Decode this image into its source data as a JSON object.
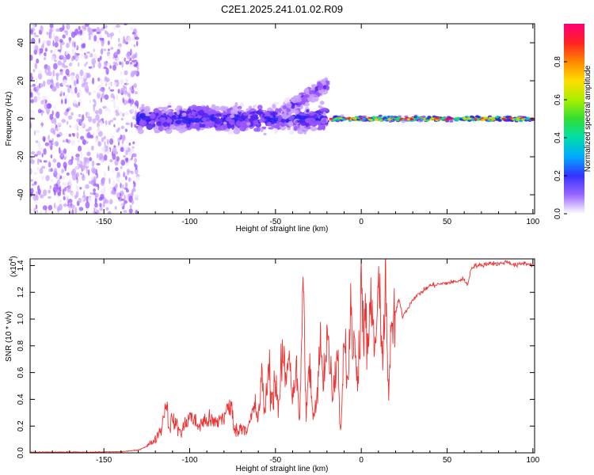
{
  "title": "C2E1.2025.241.01.02.R09",
  "chart_data": [
    {
      "type": "heatmap",
      "title": "C2E1.2025.241.01.02.R09",
      "xlabel": "Height of straight line (km)",
      "ylabel": "Frequency (Hz)",
      "xlim": [
        -193,
        101
      ],
      "ylim": [
        -50,
        50
      ],
      "xticks": [
        -150,
        -100,
        -50,
        0,
        50,
        100
      ],
      "xtick_labels": [
        "-150",
        "-100",
        "-50",
        "0",
        "50",
        "100"
      ],
      "yticks": [
        -40,
        -20,
        0,
        20,
        40
      ],
      "ytick_labels": [
        "-40",
        "-20",
        "0",
        "20",
        "40"
      ],
      "colorbar": {
        "label": "Normalized spectral amplitude",
        "range": [
          0,
          1
        ],
        "ticks": [
          0.0,
          0.2,
          0.4,
          0.6,
          0.8
        ],
        "tick_labels": [
          "0.0",
          "0.2",
          "0.4",
          "0.6",
          "0.8"
        ]
      },
      "regions": [
        {
          "x_range": [
            -193,
            -130
          ],
          "description": "scattered purple noise across all frequencies",
          "amplitude": 0.15
        },
        {
          "x_range": [
            -130,
            -20
          ],
          "center_freq": 0,
          "spread_hz": 10,
          "amplitude": 0.4
        },
        {
          "x_range": [
            -45,
            -20
          ],
          "center_freq": 15,
          "spread_hz": 6,
          "amplitude": 0.3
        },
        {
          "x_range": [
            -18,
            101
          ],
          "center_freq": 0,
          "spread_hz": 2,
          "amplitude": 0.95
        }
      ]
    },
    {
      "type": "line",
      "xlabel": "Height of straight line (km)",
      "ylabel": "SNR (10 * v/v)",
      "y_multiplier": "(x10^4)",
      "y_multiplier_base": "(x10",
      "y_multiplier_exp": "4",
      "xlim": [
        -193,
        101
      ],
      "ylim": [
        0,
        1.45
      ],
      "xticks": [
        -150,
        -100,
        -50,
        0,
        50,
        100
      ],
      "xtick_labels": [
        "-150",
        "-100",
        "-50",
        "0",
        "50",
        "100"
      ],
      "yticks": [
        0.0,
        0.2,
        0.4,
        0.6,
        0.8,
        1.0,
        1.2,
        1.4
      ],
      "ytick_labels": [
        "0.0",
        "0.2",
        "0.4",
        "0.6",
        "0.8",
        "1.0",
        "1.2",
        "1.4"
      ],
      "color": "#ee3333",
      "series": [
        {
          "name": "SNR",
          "x": [
            -193,
            -160,
            -140,
            -130,
            -125,
            -120,
            -116,
            -114,
            -112,
            -110,
            -105,
            -100,
            -95,
            -90,
            -85,
            -80,
            -76,
            -74,
            -72,
            -70,
            -66,
            -62,
            -60,
            -58,
            -56,
            -54,
            -52,
            -50,
            -48,
            -46,
            -44,
            -42,
            -40,
            -38,
            -36,
            -34,
            -32,
            -30,
            -28,
            -26,
            -24,
            -22,
            -20,
            -18,
            -16,
            -14,
            -12,
            -10,
            -8,
            -6,
            -4,
            -2,
            0,
            2,
            4,
            6,
            8,
            10,
            12,
            14,
            16,
            18,
            20,
            22,
            24,
            28,
            30,
            35,
            40,
            45,
            50,
            55,
            60,
            62,
            64,
            66,
            70,
            75,
            80,
            85,
            90,
            95,
            101
          ],
          "y": [
            0.005,
            0.005,
            0.008,
            0.02,
            0.05,
            0.1,
            0.2,
            0.4,
            0.2,
            0.25,
            0.15,
            0.28,
            0.2,
            0.25,
            0.22,
            0.28,
            0.35,
            0.2,
            0.15,
            0.2,
            0.18,
            0.35,
            0.25,
            0.55,
            0.3,
            0.65,
            0.4,
            0.55,
            0.3,
            0.75,
            0.55,
            0.8,
            0.4,
            0.65,
            0.2,
            1.26,
            0.3,
            0.65,
            0.25,
            0.35,
            0.8,
            0.55,
            0.95,
            0.6,
            0.45,
            0.85,
            0.12,
            0.9,
            0.55,
            1.0,
            0.75,
            0.6,
            1.2,
            0.95,
            0.8,
            1.1,
            0.75,
            1.25,
            0.7,
            1.3,
            0.45,
            0.95,
            1.05,
            1.15,
            1.02,
            1.1,
            1.15,
            1.2,
            1.25,
            1.26,
            1.27,
            1.28,
            1.3,
            1.25,
            1.38,
            1.4,
            1.4,
            1.42,
            1.41,
            1.43,
            1.4,
            1.42,
            1.4
          ]
        }
      ]
    }
  ]
}
